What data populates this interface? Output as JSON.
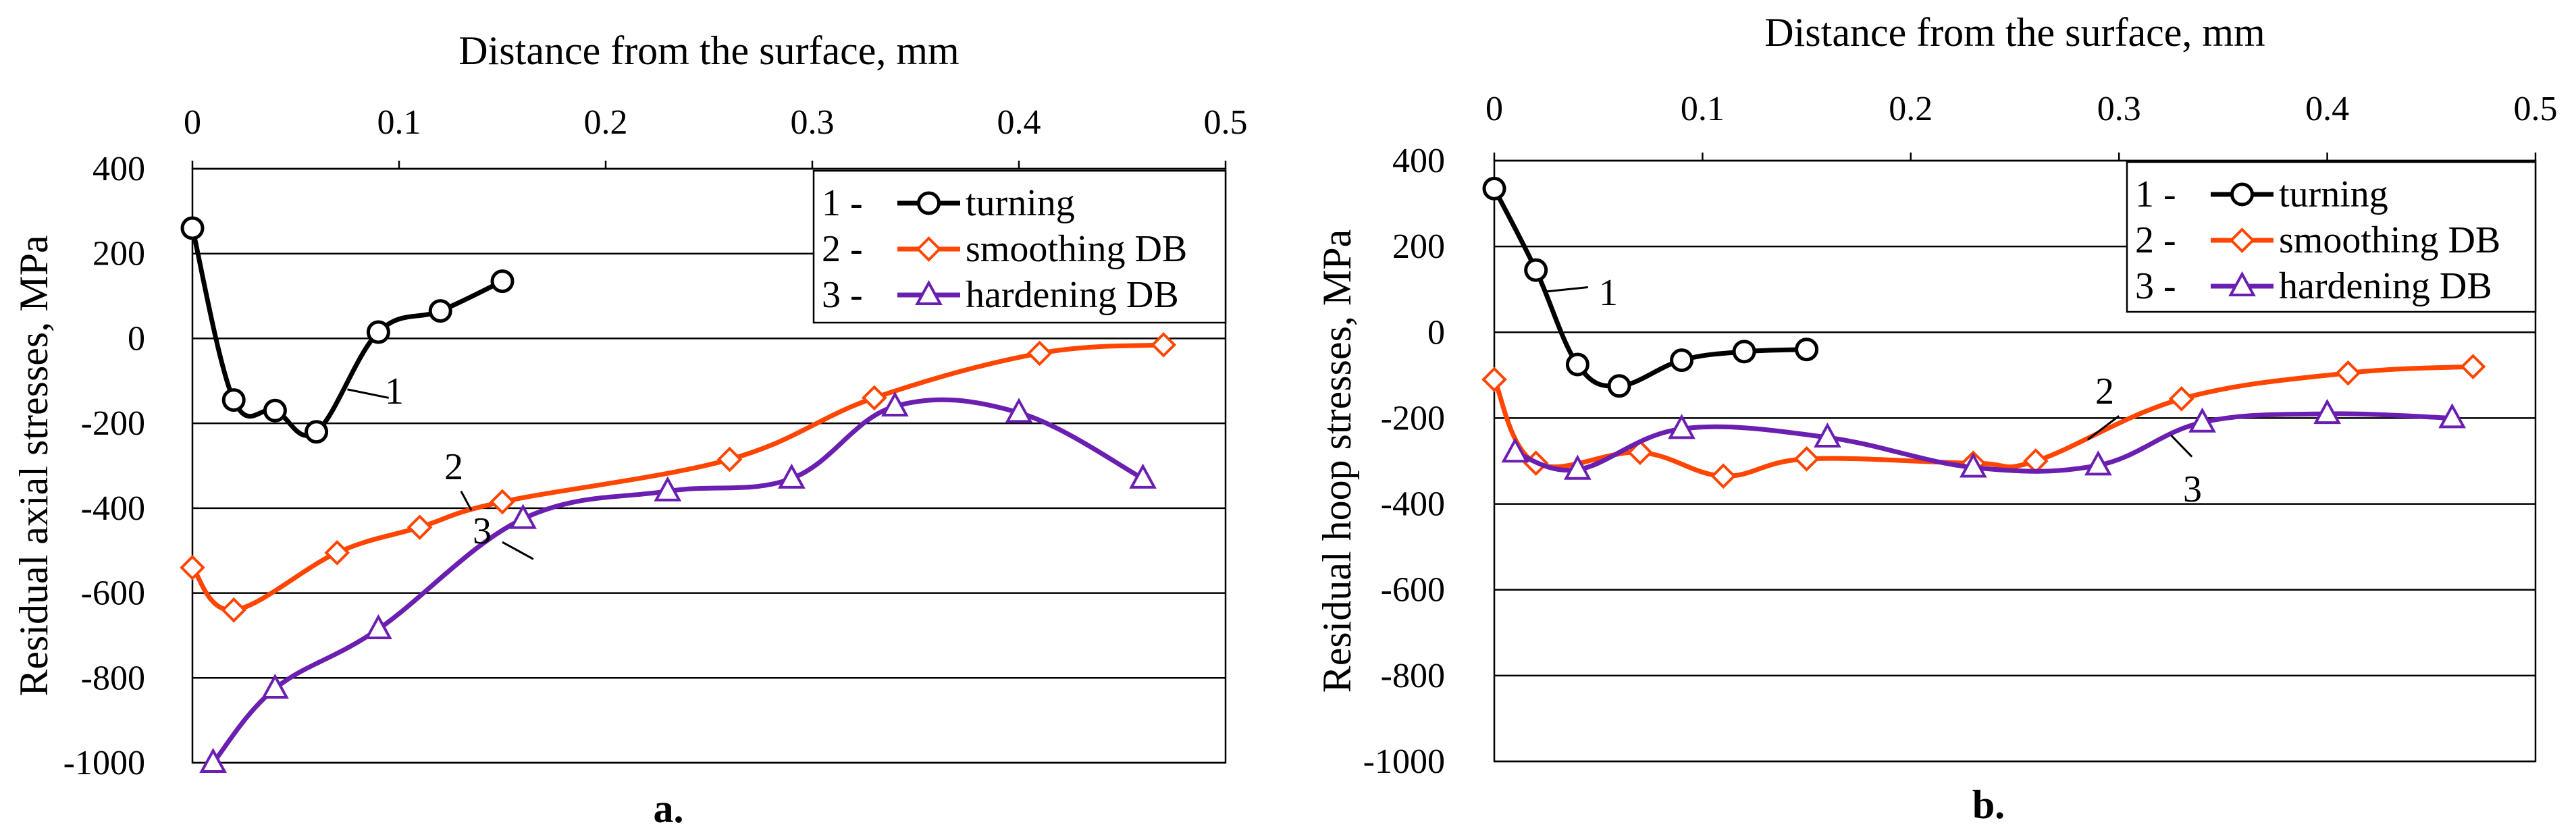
{
  "chart_data": [
    {
      "type": "line",
      "panel_label": "a.",
      "title": "",
      "xlabel": "Distance from the surface, mm",
      "ylabel": "Residual axial stresses, MPa",
      "xlim": [
        0,
        0.5
      ],
      "ylim": [
        -1000,
        400
      ],
      "xticks": [
        "0",
        "0.1",
        "0.2",
        "0.3",
        "0.4",
        "0.5"
      ],
      "yticks": [
        "400",
        "200",
        "0",
        "-200",
        "-400",
        "-600",
        "-800",
        "-1000"
      ],
      "grid": "horizontal",
      "legend": "top-right",
      "series": [
        {
          "name": "turning",
          "legend_index": "1 -",
          "color": "#000000",
          "marker": "circle",
          "callout": "1",
          "x": [
            0,
            0.02,
            0.04,
            0.06,
            0.09,
            0.12,
            0.15
          ],
          "y": [
            260,
            -145,
            -170,
            -220,
            15,
            65,
            135
          ]
        },
        {
          "name": "smoothing DB",
          "legend_index": "2 -",
          "color": "#ff4500",
          "marker": "diamond",
          "callout": "2",
          "x": [
            0,
            0.02,
            0.07,
            0.11,
            0.15,
            0.26,
            0.33,
            0.41,
            0.47
          ],
          "y": [
            -540,
            -640,
            -505,
            -445,
            -385,
            -285,
            -140,
            -35,
            -15
          ]
        },
        {
          "name": "hardening DB",
          "legend_index": "3 -",
          "color": "#6a1fb0",
          "marker": "triangle",
          "callout": "3",
          "x": [
            0.01,
            0.04,
            0.09,
            0.16,
            0.23,
            0.29,
            0.34,
            0.4,
            0.46
          ],
          "y": [
            -1000,
            -825,
            -685,
            -425,
            -360,
            -330,
            -160,
            -175,
            -330
          ]
        }
      ]
    },
    {
      "type": "line",
      "panel_label": "b.",
      "title": "",
      "xlabel": "Distance from the surface, mm",
      "ylabel": "Residual hoop stresses, MPa",
      "xlim": [
        0,
        0.5
      ],
      "ylim": [
        -1000,
        400
      ],
      "xticks": [
        "0",
        "0.1",
        "0.2",
        "0.3",
        "0.4",
        "0.5"
      ],
      "yticks": [
        "400",
        "200",
        "0",
        "-200",
        "-400",
        "-600",
        "-800",
        "-1000"
      ],
      "grid": "horizontal",
      "legend": "top-right",
      "series": [
        {
          "name": "turning",
          "legend_index": "1 -",
          "color": "#000000",
          "marker": "circle",
          "callout": "1",
          "x": [
            0,
            0.02,
            0.04,
            0.06,
            0.09,
            0.12,
            0.15
          ],
          "y": [
            335,
            145,
            -75,
            -125,
            -65,
            -45,
            -40
          ]
        },
        {
          "name": "smoothing DB",
          "legend_index": "2 -",
          "color": "#ff4500",
          "marker": "diamond",
          "callout": "2",
          "x": [
            0,
            0.02,
            0.07,
            0.11,
            0.15,
            0.23,
            0.26,
            0.33,
            0.41,
            0.47
          ],
          "y": [
            -110,
            -305,
            -280,
            -335,
            -295,
            -305,
            -300,
            -155,
            -95,
            -80
          ]
        },
        {
          "name": "hardening DB",
          "legend_index": "3 -",
          "color": "#6a1fb0",
          "marker": "triangle",
          "callout": "3",
          "x": [
            0.01,
            0.04,
            0.09,
            0.16,
            0.23,
            0.29,
            0.34,
            0.4,
            0.46
          ],
          "y": [
            -280,
            -320,
            -225,
            -245,
            -315,
            -310,
            -210,
            -190,
            -200
          ]
        }
      ]
    }
  ]
}
